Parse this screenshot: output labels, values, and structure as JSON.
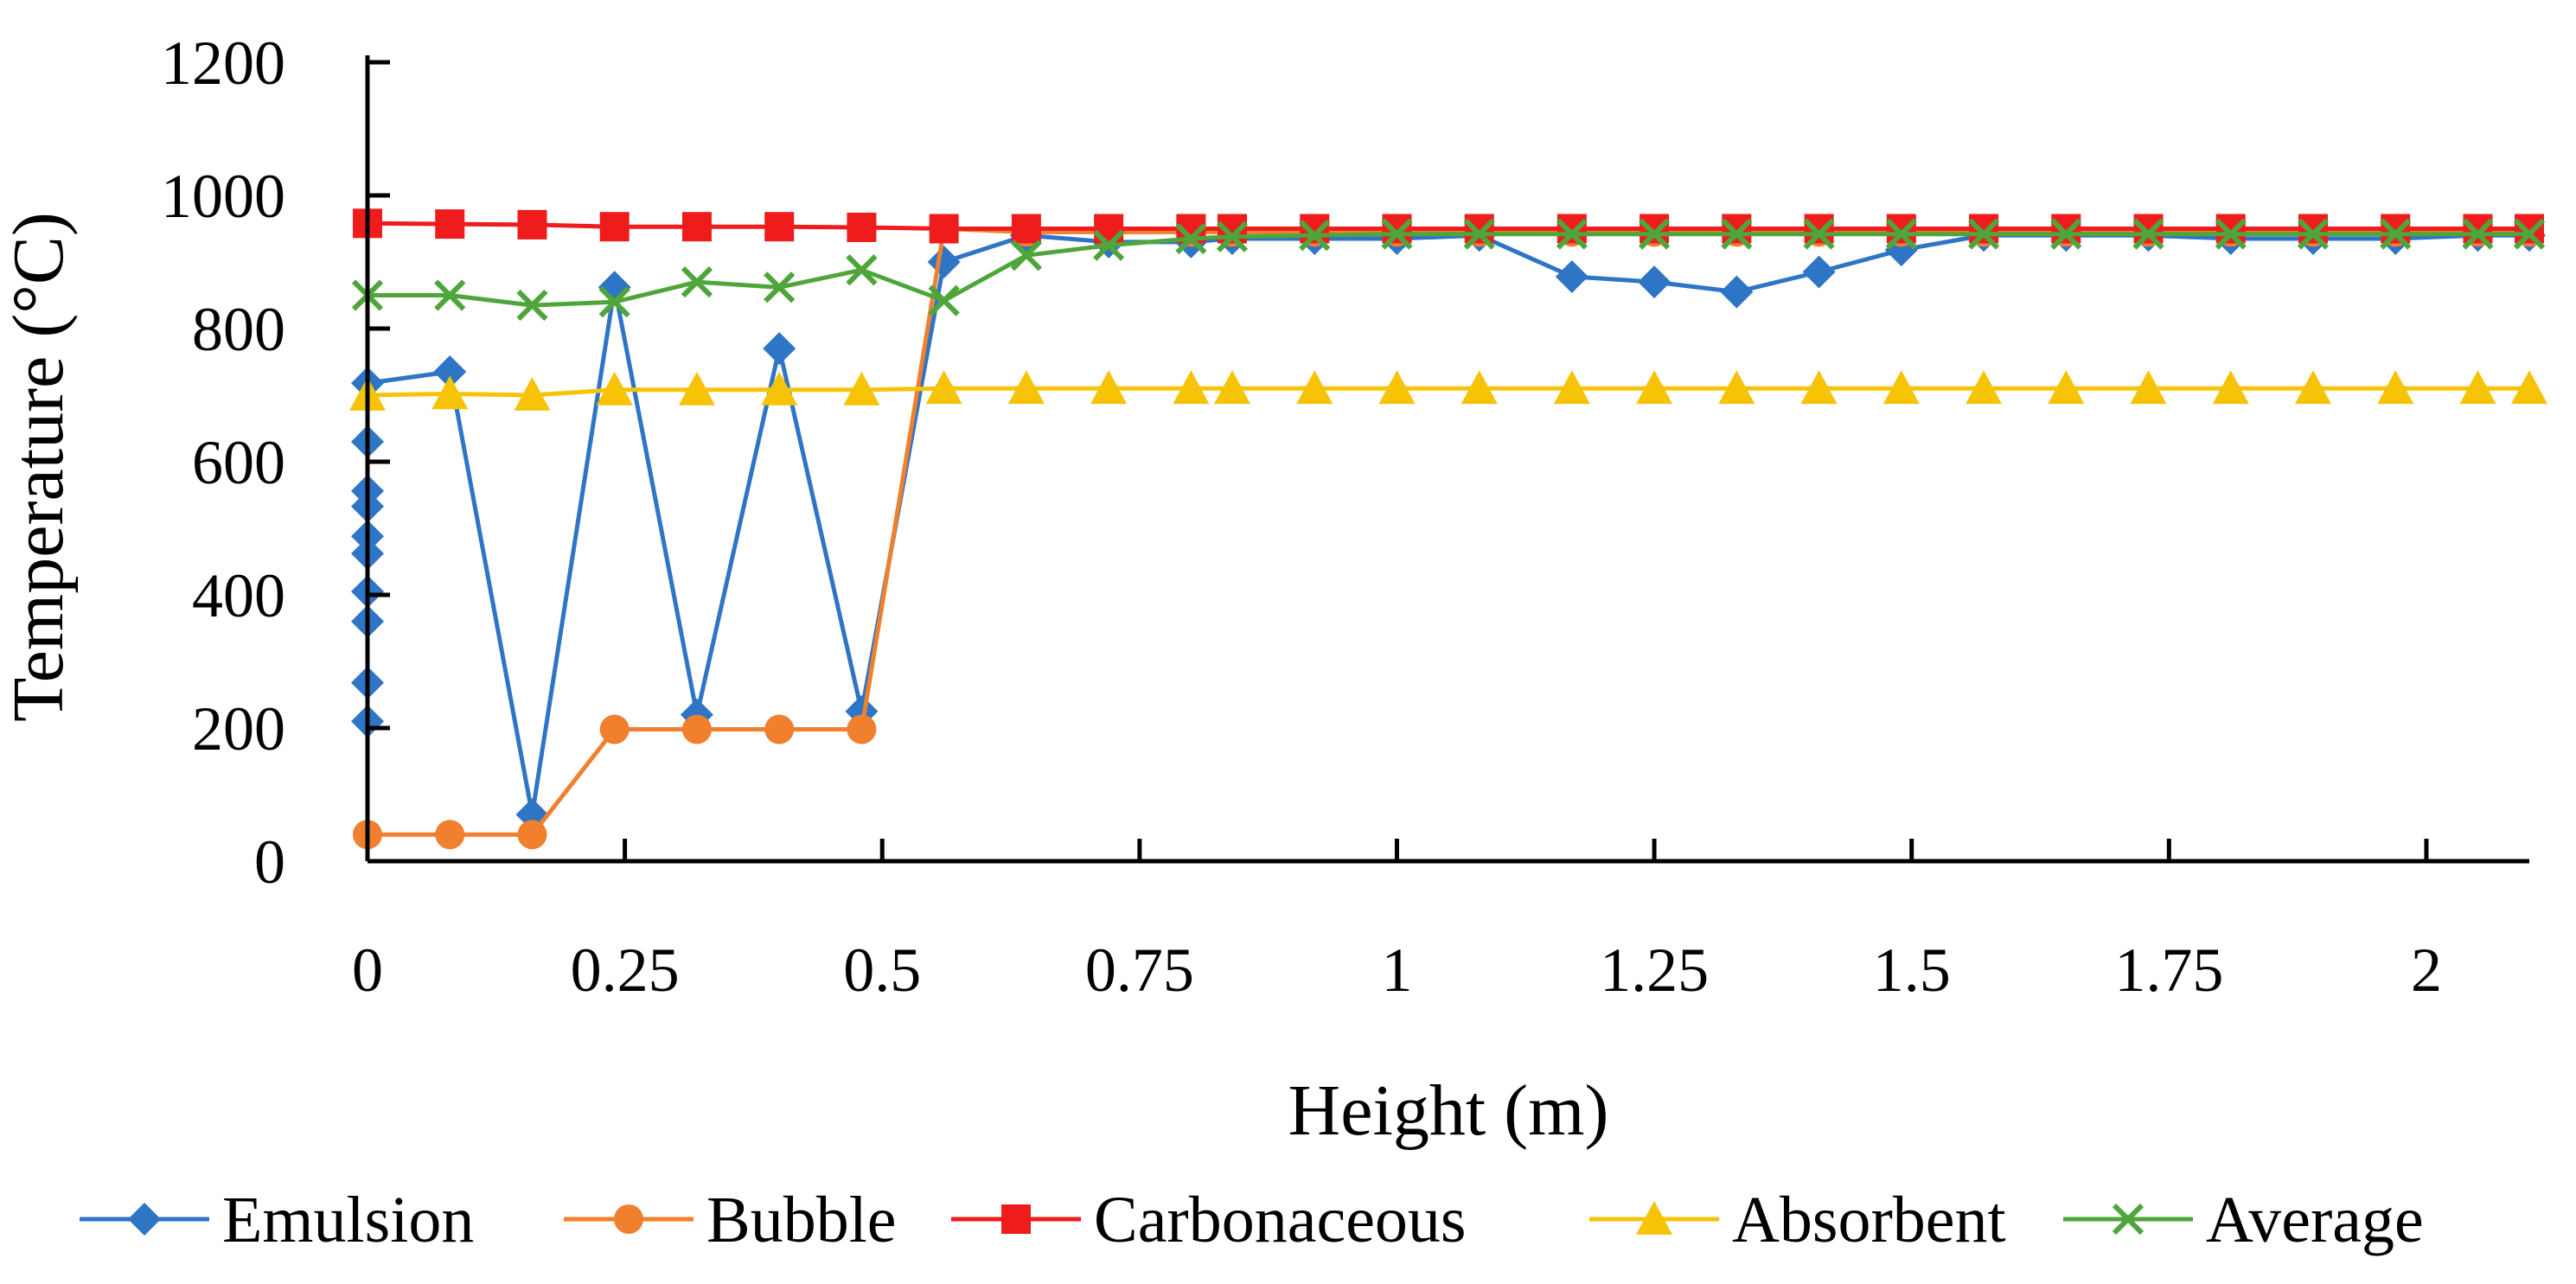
{
  "chart_data": {
    "type": "line",
    "title": "",
    "xlabel": "Height (m)",
    "ylabel": "Temperature (°C)",
    "xlim": [
      0,
      2.1
    ],
    "ylim": [
      0,
      1200
    ],
    "x_ticks": [
      0,
      0.25,
      0.5,
      0.75,
      1,
      1.25,
      1.5,
      1.75,
      2
    ],
    "x_tick_labels": [
      "0",
      "0.25",
      "0.5",
      "0.75",
      "1",
      "1.25",
      "1.5",
      "1.75",
      "2"
    ],
    "y_ticks": [
      0,
      200,
      400,
      600,
      800,
      1000,
      1200
    ],
    "y_tick_labels": [
      "0",
      "200",
      "400",
      "600",
      "800",
      "1000",
      "1200"
    ],
    "grid": false,
    "legend_position": "bottom",
    "series": [
      {
        "name": "Emulsion",
        "color": "#2E75C6",
        "marker": "diamond",
        "points": [
          [
            0,
            210
          ],
          [
            0,
            268
          ],
          [
            0,
            360
          ],
          [
            0,
            405
          ],
          [
            0,
            462
          ],
          [
            0,
            488
          ],
          [
            0,
            533
          ],
          [
            0,
            556
          ],
          [
            0,
            630
          ],
          [
            0,
            718
          ],
          [
            0.08,
            735
          ],
          [
            0.16,
            70
          ],
          [
            0.24,
            862
          ],
          [
            0.32,
            220
          ],
          [
            0.4,
            770
          ],
          [
            0.48,
            225
          ],
          [
            0.56,
            900
          ],
          [
            0.64,
            940
          ],
          [
            0.72,
            930
          ],
          [
            0.8,
            930
          ],
          [
            0.84,
            935
          ],
          [
            0.92,
            935
          ],
          [
            1.0,
            935
          ],
          [
            1.08,
            940
          ],
          [
            1.17,
            878
          ],
          [
            1.25,
            870
          ],
          [
            1.33,
            855
          ],
          [
            1.41,
            885
          ],
          [
            1.49,
            918
          ],
          [
            1.57,
            940
          ],
          [
            1.65,
            940
          ],
          [
            1.73,
            940
          ],
          [
            1.81,
            935
          ],
          [
            1.89,
            935
          ],
          [
            1.97,
            935
          ],
          [
            2.05,
            940
          ],
          [
            2.1,
            940
          ]
        ]
      },
      {
        "name": "Bubble",
        "color": "#F07F2E",
        "marker": "circle",
        "points": [
          [
            0,
            40
          ],
          [
            0.08,
            40
          ],
          [
            0.16,
            40
          ],
          [
            0.24,
            198
          ],
          [
            0.32,
            198
          ],
          [
            0.4,
            198
          ],
          [
            0.48,
            198
          ],
          [
            0.56,
            950
          ],
          [
            0.64,
            945
          ],
          [
            0.72,
            945
          ],
          [
            0.8,
            945
          ],
          [
            0.84,
            945
          ],
          [
            0.92,
            945
          ],
          [
            1.0,
            945
          ],
          [
            1.08,
            945
          ],
          [
            1.17,
            945
          ],
          [
            1.25,
            945
          ],
          [
            1.33,
            945
          ],
          [
            1.41,
            945
          ],
          [
            1.49,
            945
          ],
          [
            1.57,
            945
          ],
          [
            1.65,
            945
          ],
          [
            1.73,
            945
          ],
          [
            1.81,
            945
          ],
          [
            1.89,
            945
          ],
          [
            1.97,
            945
          ],
          [
            2.05,
            945
          ],
          [
            2.1,
            945
          ]
        ]
      },
      {
        "name": "Carbonaceous",
        "color": "#EE1C1C",
        "marker": "square",
        "points": [
          [
            0,
            958
          ],
          [
            0.08,
            957
          ],
          [
            0.16,
            956
          ],
          [
            0.24,
            953
          ],
          [
            0.32,
            953
          ],
          [
            0.4,
            953
          ],
          [
            0.48,
            952
          ],
          [
            0.56,
            950
          ],
          [
            0.64,
            950
          ],
          [
            0.72,
            950
          ],
          [
            0.8,
            950
          ],
          [
            0.84,
            950
          ],
          [
            0.92,
            950
          ],
          [
            1.0,
            950
          ],
          [
            1.08,
            950
          ],
          [
            1.17,
            950
          ],
          [
            1.25,
            950
          ],
          [
            1.33,
            950
          ],
          [
            1.41,
            950
          ],
          [
            1.49,
            950
          ],
          [
            1.57,
            950
          ],
          [
            1.65,
            950
          ],
          [
            1.73,
            950
          ],
          [
            1.81,
            950
          ],
          [
            1.89,
            950
          ],
          [
            1.97,
            950
          ],
          [
            2.05,
            950
          ],
          [
            2.1,
            950
          ]
        ]
      },
      {
        "name": "Absorbent",
        "color": "#F7C307",
        "marker": "triangle",
        "points": [
          [
            0,
            700
          ],
          [
            0.08,
            702
          ],
          [
            0.16,
            700
          ],
          [
            0.24,
            708
          ],
          [
            0.32,
            708
          ],
          [
            0.4,
            708
          ],
          [
            0.48,
            708
          ],
          [
            0.56,
            710
          ],
          [
            0.64,
            710
          ],
          [
            0.72,
            710
          ],
          [
            0.8,
            710
          ],
          [
            0.84,
            710
          ],
          [
            0.92,
            710
          ],
          [
            1.0,
            710
          ],
          [
            1.08,
            710
          ],
          [
            1.17,
            710
          ],
          [
            1.25,
            710
          ],
          [
            1.33,
            710
          ],
          [
            1.41,
            710
          ],
          [
            1.49,
            710
          ],
          [
            1.57,
            710
          ],
          [
            1.65,
            710
          ],
          [
            1.73,
            710
          ],
          [
            1.81,
            710
          ],
          [
            1.89,
            710
          ],
          [
            1.97,
            710
          ],
          [
            2.05,
            710
          ],
          [
            2.1,
            710
          ]
        ]
      },
      {
        "name": "Average",
        "color": "#4EA63B",
        "marker": "x",
        "points": [
          [
            0,
            850
          ],
          [
            0.08,
            850
          ],
          [
            0.16,
            835
          ],
          [
            0.24,
            840
          ],
          [
            0.32,
            870
          ],
          [
            0.4,
            862
          ],
          [
            0.48,
            888
          ],
          [
            0.56,
            842
          ],
          [
            0.64,
            910
          ],
          [
            0.72,
            925
          ],
          [
            0.8,
            935
          ],
          [
            0.84,
            938
          ],
          [
            0.92,
            940
          ],
          [
            1.0,
            942
          ],
          [
            1.08,
            942
          ],
          [
            1.17,
            942
          ],
          [
            1.25,
            942
          ],
          [
            1.33,
            942
          ],
          [
            1.41,
            942
          ],
          [
            1.49,
            942
          ],
          [
            1.57,
            942
          ],
          [
            1.65,
            942
          ],
          [
            1.73,
            942
          ],
          [
            1.81,
            942
          ],
          [
            1.89,
            942
          ],
          [
            1.97,
            942
          ],
          [
            2.05,
            942
          ],
          [
            2.1,
            942
          ]
        ]
      }
    ]
  }
}
